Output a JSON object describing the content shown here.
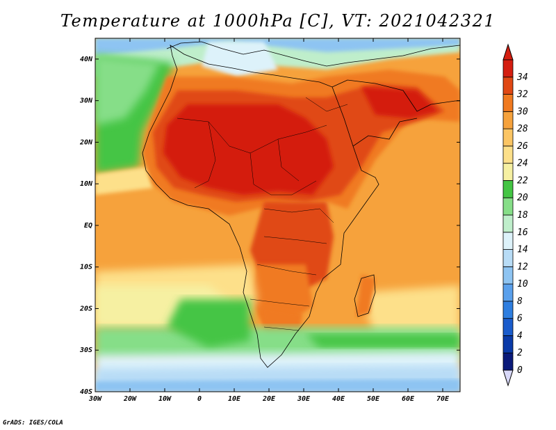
{
  "title": "Temperature at 1000hPa [C], VT: 2021042321",
  "credit": "GrADS: IGES/COLA",
  "map": {
    "lon_range": [
      -30,
      75
    ],
    "lat_range": [
      -40,
      45
    ],
    "x_ticks": [
      {
        "lon": -30,
        "label": "30W"
      },
      {
        "lon": -20,
        "label": "20W"
      },
      {
        "lon": -10,
        "label": "10W"
      },
      {
        "lon": 0,
        "label": "0"
      },
      {
        "lon": 10,
        "label": "10E"
      },
      {
        "lon": 20,
        "label": "20E"
      },
      {
        "lon": 30,
        "label": "30E"
      },
      {
        "lon": 40,
        "label": "40E"
      },
      {
        "lon": 50,
        "label": "50E"
      },
      {
        "lon": 60,
        "label": "60E"
      },
      {
        "lon": 70,
        "label": "70E"
      }
    ],
    "y_ticks": [
      {
        "lat": 40,
        "label": "40N"
      },
      {
        "lat": 30,
        "label": "30N"
      },
      {
        "lat": 20,
        "label": "20N"
      },
      {
        "lat": 10,
        "label": "10N"
      },
      {
        "lat": 0,
        "label": "EQ"
      },
      {
        "lat": -10,
        "label": "10S"
      },
      {
        "lat": -20,
        "label": "20S"
      },
      {
        "lat": -30,
        "label": "30S"
      },
      {
        "lat": -40,
        "label": "40S"
      }
    ]
  },
  "colorbar": {
    "labels": [
      "0",
      "2",
      "4",
      "6",
      "8",
      "10",
      "12",
      "14",
      "16",
      "18",
      "20",
      "22",
      "24",
      "26",
      "28",
      "30",
      "32",
      "34"
    ],
    "colors": [
      "#0a1a7a",
      "#0a3aa8",
      "#1a5ccc",
      "#2e7ee0",
      "#5aa0ec",
      "#8ec4f2",
      "#b8dcf6",
      "#ddf2fa",
      "#bfeecb",
      "#86de88",
      "#44c544",
      "#f6f0a2",
      "#fde08a",
      "#fbc564",
      "#f6a23c",
      "#f07a20",
      "#e04814",
      "#d41e10"
    ],
    "under_color": "#d8d8f8",
    "over_color": "#d41e10"
  }
}
